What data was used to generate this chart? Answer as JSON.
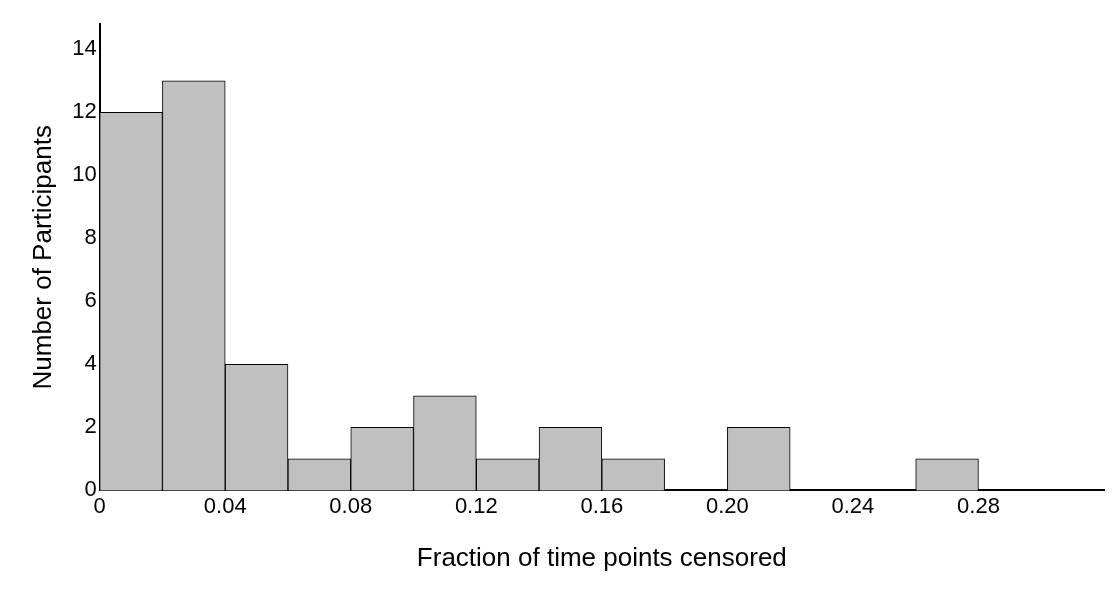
{
  "chart_data": {
    "type": "histogram",
    "xlabel": "Fraction of time points censored",
    "ylabel": "Number of Participants",
    "bins": [
      0,
      0.02,
      0.04,
      0.06,
      0.08,
      0.1,
      0.12,
      0.14,
      0.16,
      0.18,
      0.2,
      0.22,
      0.24,
      0.26,
      0.28
    ],
    "values": [
      12,
      13,
      4,
      1,
      2,
      3,
      1,
      2,
      1,
      0,
      2,
      0,
      0,
      1
    ],
    "color": "#c0c0c0",
    "xlim": [
      0,
      0.32
    ],
    "xticks": [
      0,
      0.04,
      0.08,
      0.12,
      0.16,
      {
        "value": 0.2,
        "label": "0.20"
      },
      0.24,
      0.28
    ],
    "ylim": [
      0,
      14.8
    ],
    "yticks": [
      0,
      2,
      4,
      6,
      8,
      10,
      12,
      14
    ],
    "grid": false,
    "legend": false
  }
}
